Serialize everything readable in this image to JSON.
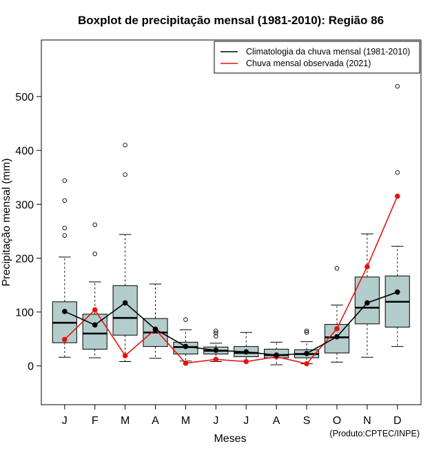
{
  "chart_data": {
    "type": "boxplot",
    "title": "Boxplot de precipitação mensal (1981-2010): Região 86",
    "xlabel": "Meses",
    "ylabel": "Precipitação mensal (mm)",
    "credit": "(Produto:CPTEC/INPE)",
    "ylim": [
      -72,
      605
    ],
    "yticks": [
      0,
      100,
      200,
      300,
      400,
      500
    ],
    "categories": [
      "J",
      "F",
      "M",
      "A",
      "M",
      "J",
      "J",
      "A",
      "S",
      "O",
      "N",
      "D"
    ],
    "boxes": [
      {
        "lw": 16,
        "q1": 43,
        "median": 80,
        "q3": 119,
        "uw": 202,
        "outliers": [
          242,
          256,
          307,
          344
        ]
      },
      {
        "lw": 15,
        "q1": 31,
        "median": 60,
        "q3": 96,
        "uw": 156,
        "outliers": [
          208,
          262
        ]
      },
      {
        "lw": 8,
        "q1": 57,
        "median": 89,
        "q3": 149,
        "uw": 244,
        "outliers": [
          355,
          410
        ]
      },
      {
        "lw": 14,
        "q1": 36,
        "median": 62,
        "q3": 88,
        "uw": 152,
        "outliers": []
      },
      {
        "lw": 9,
        "q1": 22,
        "median": 35,
        "q3": 44,
        "uw": 67,
        "outliers": [
          86
        ]
      },
      {
        "lw": 8,
        "q1": 22,
        "median": 28,
        "q3": 35,
        "uw": 42,
        "outliers": [
          55,
          61,
          65
        ]
      },
      {
        "lw": 9,
        "q1": 17,
        "median": 24,
        "q3": 36,
        "uw": 62,
        "outliers": []
      },
      {
        "lw": 2,
        "q1": 15,
        "median": 20,
        "q3": 31,
        "uw": 44,
        "outliers": []
      },
      {
        "lw": 4,
        "q1": 15,
        "median": 22,
        "q3": 30,
        "uw": 45,
        "outliers": [
          62,
          65
        ]
      },
      {
        "lw": 7,
        "q1": 24,
        "median": 53,
        "q3": 77,
        "uw": 113,
        "outliers": [
          181
        ]
      },
      {
        "lw": 16,
        "q1": 78,
        "median": 108,
        "q3": 165,
        "uw": 245,
        "outliers": []
      },
      {
        "lw": 36,
        "q1": 72,
        "median": 119,
        "q3": 167,
        "uw": 222,
        "outliers": [
          359,
          519
        ]
      }
    ],
    "series": [
      {
        "name": "Climatologia da chuva mensal (1981-2010)",
        "color": "#000000",
        "values": [
          101,
          76,
          117,
          68,
          36,
          29,
          26,
          20,
          23,
          54,
          117,
          137
        ]
      },
      {
        "name": "Chuva mensal observada (2021)",
        "color": "#e8120c",
        "values": [
          49,
          104,
          19,
          68,
          5,
          12,
          8,
          17,
          4,
          69,
          184,
          315
        ]
      }
    ],
    "box_fill": "#b3cccc",
    "legend_position": "top-right"
  }
}
